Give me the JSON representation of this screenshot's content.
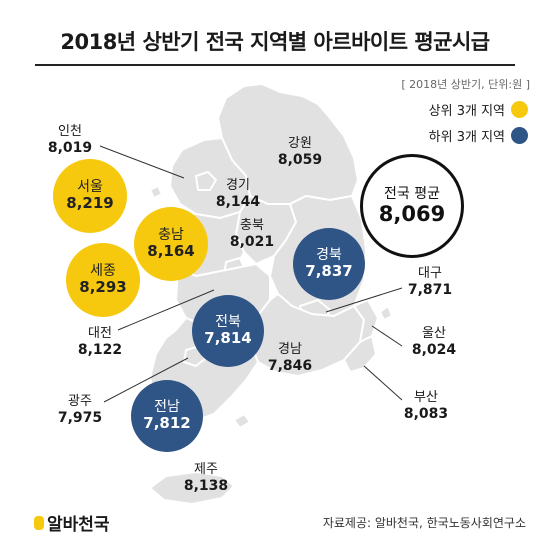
{
  "title": "2018년 상반기 전국 지역별 아르바이트 평균시급",
  "subtitle": "[ 2018년 상반기, 단위:원 ]",
  "legend": {
    "top": "상위 3개 지역",
    "bottom": "하위 3개 지역"
  },
  "colors": {
    "top": "#f6c90f",
    "bottom": "#2f5486",
    "map": "#e1e1e1",
    "border": "#ffffff"
  },
  "average": {
    "name": "전국 평균",
    "value": "8,069"
  },
  "regions": {
    "incheon": {
      "name": "인천",
      "value": "8,019"
    },
    "gangwon": {
      "name": "강원",
      "value": "8,059"
    },
    "gyeonggi": {
      "name": "경기",
      "value": "8,144"
    },
    "chungbuk": {
      "name": "충북",
      "value": "8,021"
    },
    "daegu": {
      "name": "대구",
      "value": "7,871"
    },
    "daejeon": {
      "name": "대전",
      "value": "8,122"
    },
    "ulsan": {
      "name": "울산",
      "value": "8,024"
    },
    "gyeongnam": {
      "name": "경남",
      "value": "7,846"
    },
    "busan": {
      "name": "부산",
      "value": "8,083"
    },
    "gwangju": {
      "name": "광주",
      "value": "7,975"
    },
    "jeju": {
      "name": "제주",
      "value": "8,138"
    },
    "seoul": {
      "name": "서울",
      "value": "8,219"
    },
    "chungnam": {
      "name": "충남",
      "value": "8,164"
    },
    "sejong": {
      "name": "세종",
      "value": "8,293"
    },
    "gyeongbuk": {
      "name": "경북",
      "value": "7,837"
    },
    "jeonbuk": {
      "name": "전북",
      "value": "7,814"
    },
    "jeonnam": {
      "name": "전남",
      "value": "7,812"
    }
  },
  "footer": {
    "logo": "알바천국",
    "source": "자료제공: 알바천국, 한국노동사회연구소"
  }
}
